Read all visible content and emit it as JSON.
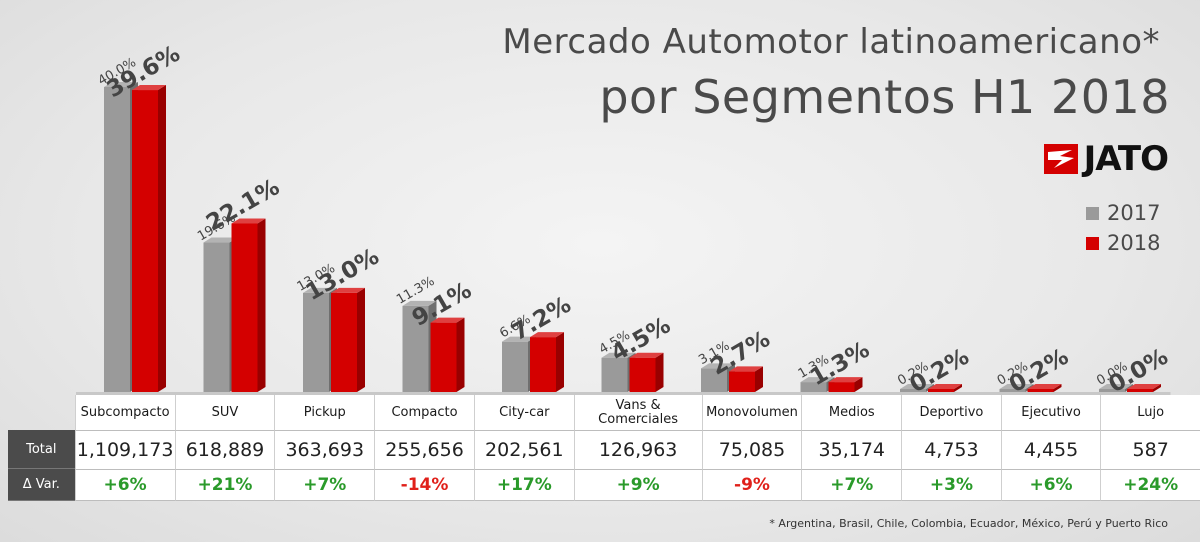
{
  "title_line1": "Mercado Automotor latinoamericano*",
  "title_line2": "por Segmentos H1 2018",
  "logo_text": "JATO",
  "colors": {
    "y2017": "#9a9a9a",
    "y2018": "#d40000",
    "green": "#2a9a2a",
    "red": "#e0201a"
  },
  "table": {
    "total_label": "Total",
    "var_label": "Δ Var."
  },
  "footnote": "* Argentina, Brasil, Chile, Colombia, Ecuador, México, Perú y Puerto Rico",
  "chart_data": {
    "type": "bar",
    "categories": [
      "Subcompacto",
      "SUV",
      "Pickup",
      "Compacto",
      "City-car",
      "Vans & Comerciales",
      "Monovolumen",
      "Medios",
      "Deportivo",
      "Ejecutivo",
      "Lujo"
    ],
    "series": [
      {
        "name": "2017",
        "values": [
          40.0,
          19.6,
          13.0,
          11.3,
          6.6,
          4.5,
          3.1,
          1.3,
          0.2,
          0.2,
          0.0
        ],
        "labels": [
          "40.0%",
          "19.6%",
          "13.0%",
          "11.3%",
          "6.6%",
          "4.5%",
          "3.1%",
          "1.3%",
          "0.2%",
          "0.2%",
          "0.0%"
        ]
      },
      {
        "name": "2018",
        "values": [
          39.6,
          22.1,
          13.0,
          9.1,
          7.2,
          4.5,
          2.7,
          1.3,
          0.2,
          0.2,
          0.0
        ],
        "labels": [
          "39.6%",
          "22.1%",
          "13.0%",
          "9.1%",
          "7.2%",
          "4.5%",
          "2.7%",
          "1.3%",
          "0.2%",
          "0.2%",
          "0.0%"
        ]
      }
    ],
    "totals": [
      "1,109,173",
      "618,889",
      "363,693",
      "255,656",
      "202,561",
      "126,963",
      "75,085",
      "35,174",
      "4,753",
      "4,455",
      "587"
    ],
    "variation": [
      "+6%",
      "+21%",
      "+7%",
      "-14%",
      "+17%",
      "+9%",
      "-9%",
      "+7%",
      "+3%",
      "+6%",
      "+24%"
    ],
    "legend_placement": "right",
    "grid": false
  }
}
